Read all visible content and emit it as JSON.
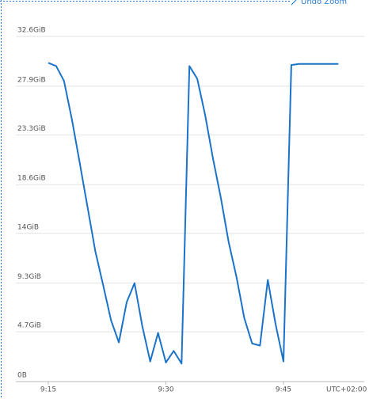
{
  "chart_data": {
    "type": "line",
    "undo_zoom": "Undo Zoom",
    "timezone": "UTC+02:00",
    "categories": [
      "9:15",
      null,
      null,
      null,
      null,
      null,
      null,
      null,
      null,
      null,
      null,
      null,
      null,
      null,
      null,
      "9:30",
      null,
      null,
      null,
      null,
      null,
      null,
      null,
      null,
      null,
      null,
      null,
      null,
      null,
      null,
      "9:45",
      null,
      null,
      null,
      null,
      null,
      null,
      null
    ],
    "series": [
      {
        "color": "#1a73c8",
        "values": [
          30.1,
          29.8,
          28.4,
          24.8,
          20.7,
          16.5,
          12.3,
          9.1,
          5.8,
          3.7,
          7.5,
          9.3,
          5.2,
          1.9,
          4.6,
          1.8,
          2.9,
          1.7,
          29.8,
          28.6,
          25.2,
          21.1,
          17.4,
          13.2,
          9.9,
          6.0,
          3.6,
          3.4,
          9.6,
          5.4,
          1.9,
          29.9,
          30.0,
          30.0,
          30.0,
          30.0,
          30.0,
          30.0
        ]
      }
    ],
    "ylim": [
      0,
      32.6
    ],
    "yticks": [
      {
        "value": 0,
        "label": "0B"
      },
      {
        "value": 4.7,
        "label": "4.7GiB"
      },
      {
        "value": 9.3,
        "label": "9.3GiB"
      },
      {
        "value": 14,
        "label": "14GiB"
      },
      {
        "value": 18.6,
        "label": "18.6GiB"
      },
      {
        "value": 23.3,
        "label": "23.3GiB"
      },
      {
        "value": 27.9,
        "label": "27.9GiB"
      },
      {
        "value": 32.6,
        "label": "32.6GiB"
      }
    ],
    "grid": true
  }
}
